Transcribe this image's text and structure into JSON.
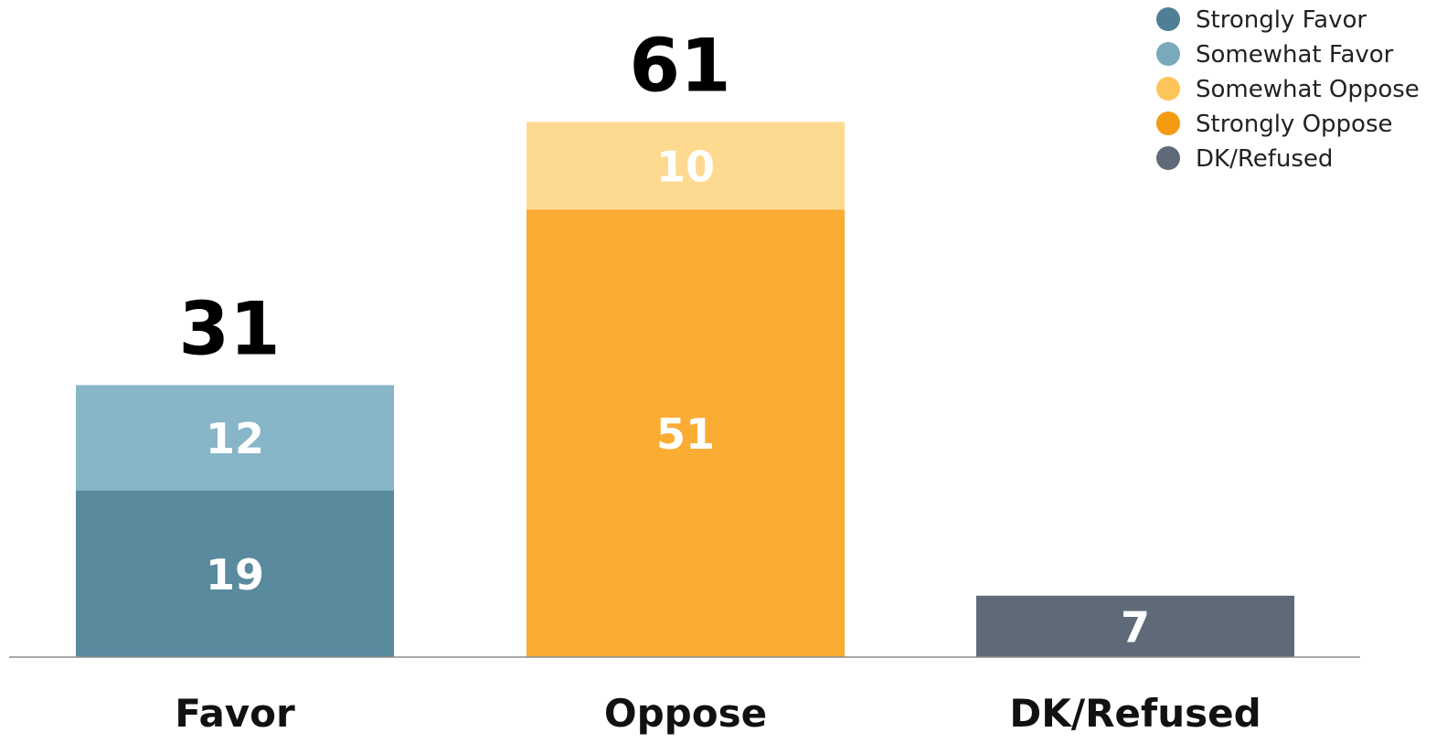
{
  "chart_data": {
    "type": "bar",
    "stacked": true,
    "categories": [
      "Favor",
      "Oppose",
      "DK/Refused"
    ],
    "series": [
      {
        "name": "Strongly Favor",
        "color": "#598a9e",
        "values": [
          19,
          null,
          null
        ]
      },
      {
        "name": "Somewhat Favor",
        "color": "#86b6c8",
        "values": [
          12,
          null,
          null
        ]
      },
      {
        "name": "Somewhat Oppose",
        "color": "#fed990",
        "values": [
          null,
          10,
          null
        ]
      },
      {
        "name": "Strongly Oppose",
        "color": "#fbac33",
        "values": [
          null,
          51,
          null
        ]
      },
      {
        "name": "DK/Refused",
        "color": "#5e6a78",
        "values": [
          null,
          null,
          7
        ]
      }
    ],
    "legend_colors": [
      "#4f7f94",
      "#79a9bb",
      "#fdc45a",
      "#f39c12",
      "#5e6a78"
    ],
    "stack_order": [
      [
        "Strongly Favor",
        "Somewhat Favor"
      ],
      [
        "Strongly Oppose",
        "Somewhat Oppose"
      ],
      [
        "DK/Refused"
      ]
    ],
    "totals": [
      31,
      61,
      null
    ],
    "ylim": [
      0,
      68
    ],
    "grid": false,
    "legend_position": "top-right"
  }
}
